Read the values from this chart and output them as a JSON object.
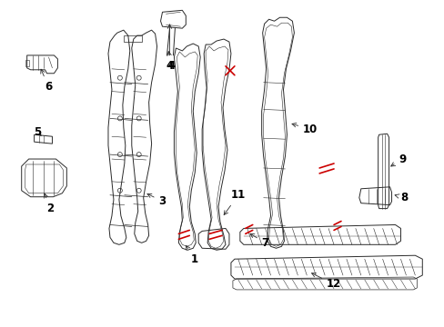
{
  "background_color": "#ffffff",
  "line_color": "#2a2a2a",
  "red_color": "#cc0000",
  "label_color": "#000000",
  "figsize": [
    4.89,
    3.6
  ],
  "dpi": 100
}
